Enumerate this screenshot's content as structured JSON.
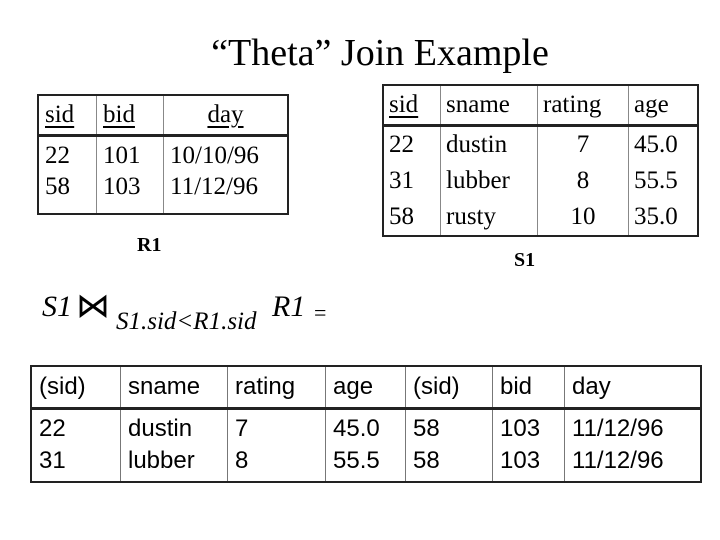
{
  "title": "“Theta” Join Example",
  "r1": {
    "columns": [
      "sid",
      "bid",
      "day"
    ],
    "rows": [
      [
        "22",
        "101",
        "10/10/96"
      ],
      [
        "58",
        "103",
        "11/12/96"
      ]
    ],
    "label": "R1"
  },
  "s1": {
    "columns": [
      "sid",
      "sname",
      "rating",
      "age"
    ],
    "rows": [
      [
        "22",
        "dustin",
        "7",
        "45.0"
      ],
      [
        "31",
        "lubber",
        "8",
        "55.5"
      ],
      [
        "58",
        "rusty",
        "10",
        "35.0"
      ]
    ],
    "label": "S1"
  },
  "formula": {
    "left": "S1",
    "operator": "⋈",
    "condition": "S1.sid<R1.sid",
    "right": "R1",
    "equals": "="
  },
  "result": {
    "columns": [
      "(sid)",
      "sname",
      "rating",
      "age",
      "(sid)",
      "bid",
      "day"
    ],
    "rows": [
      [
        "22",
        "dustin",
        "7",
        "45.0",
        "58",
        "103",
        "11/12/96"
      ],
      [
        "31",
        "lubber",
        "8",
        "55.5",
        "58",
        "103",
        "11/12/96"
      ]
    ]
  }
}
